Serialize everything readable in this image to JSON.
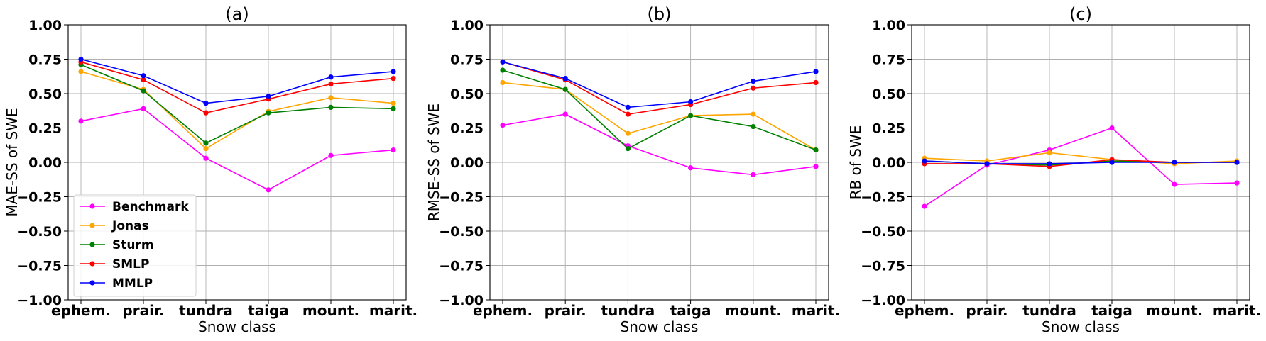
{
  "chart_data": [
    {
      "type": "line",
      "title": "(a)",
      "xlabel": "Snow class",
      "ylabel": "MAE-SS of SWE",
      "categories": [
        "ephem.",
        "prair.",
        "tundra",
        "taiga",
        "mount.",
        "marit."
      ],
      "ylim": [
        -1.0,
        1.0
      ],
      "yticks": [
        "−1.00",
        "−0.75",
        "−0.50",
        "−0.25",
        "0.00",
        "0.25",
        "0.50",
        "0.75",
        "1.00"
      ],
      "grid": true,
      "legend": "lower-left",
      "series": [
        {
          "name": "Benchmark",
          "color": "#ff00ff",
          "values": [
            0.3,
            0.39,
            0.03,
            -0.2,
            0.05,
            0.09
          ]
        },
        {
          "name": "Jonas",
          "color": "#ffa500",
          "values": [
            0.66,
            0.53,
            0.1,
            0.37,
            0.47,
            0.43
          ]
        },
        {
          "name": "Sturm",
          "color": "#008000",
          "values": [
            0.71,
            0.52,
            0.14,
            0.36,
            0.4,
            0.39
          ]
        },
        {
          "name": "SMLP",
          "color": "#ff0000",
          "values": [
            0.73,
            0.6,
            0.36,
            0.46,
            0.57,
            0.61
          ]
        },
        {
          "name": "MMLP",
          "color": "#0000ff",
          "values": [
            0.75,
            0.63,
            0.43,
            0.48,
            0.62,
            0.66
          ]
        }
      ]
    },
    {
      "type": "line",
      "title": "(b)",
      "xlabel": "Snow class",
      "ylabel": "RMSE-SS of SWE",
      "categories": [
        "ephem.",
        "prair.",
        "tundra",
        "taiga",
        "mount.",
        "marit."
      ],
      "ylim": [
        -1.0,
        1.0
      ],
      "yticks": [
        "−1.00",
        "−0.75",
        "−0.50",
        "−0.25",
        "0.00",
        "0.25",
        "0.50",
        "0.75",
        "1.00"
      ],
      "grid": true,
      "series": [
        {
          "name": "Benchmark",
          "color": "#ff00ff",
          "values": [
            0.27,
            0.35,
            0.12,
            -0.04,
            -0.09,
            -0.03
          ]
        },
        {
          "name": "Jonas",
          "color": "#ffa500",
          "values": [
            0.58,
            0.53,
            0.21,
            0.34,
            0.35,
            0.09
          ]
        },
        {
          "name": "Sturm",
          "color": "#008000",
          "values": [
            0.67,
            0.53,
            0.1,
            0.34,
            0.26,
            0.09
          ]
        },
        {
          "name": "SMLP",
          "color": "#ff0000",
          "values": [
            0.73,
            0.6,
            0.35,
            0.42,
            0.54,
            0.58
          ]
        },
        {
          "name": "MMLP",
          "color": "#0000ff",
          "values": [
            0.73,
            0.61,
            0.4,
            0.44,
            0.59,
            0.66
          ]
        }
      ]
    },
    {
      "type": "line",
      "title": "(c)",
      "xlabel": "Snow class",
      "ylabel": "RB of SWE",
      "categories": [
        "ephem.",
        "prair.",
        "tundra",
        "taiga",
        "mount.",
        "marit."
      ],
      "ylim": [
        -1.0,
        1.0
      ],
      "yticks": [
        "−1.00",
        "−0.75",
        "−0.50",
        "−0.25",
        "0.00",
        "0.25",
        "0.50",
        "0.75",
        "1.00"
      ],
      "grid": true,
      "series": [
        {
          "name": "Benchmark",
          "color": "#ff00ff",
          "values": [
            -0.32,
            -0.02,
            0.09,
            0.25,
            -0.16,
            -0.15
          ]
        },
        {
          "name": "Jonas",
          "color": "#ffa500",
          "values": [
            0.03,
            0.01,
            0.07,
            0.02,
            -0.01,
            0.01
          ]
        },
        {
          "name": "Sturm",
          "color": "#008000",
          "values": [
            0.01,
            -0.01,
            -0.02,
            0.01,
            0.0,
            0.0
          ]
        },
        {
          "name": "SMLP",
          "color": "#ff0000",
          "values": [
            -0.01,
            -0.01,
            -0.03,
            0.02,
            0.0,
            0.0
          ]
        },
        {
          "name": "MMLP",
          "color": "#0000ff",
          "values": [
            0.01,
            -0.01,
            -0.01,
            0.0,
            0.0,
            0.0
          ]
        }
      ]
    }
  ]
}
